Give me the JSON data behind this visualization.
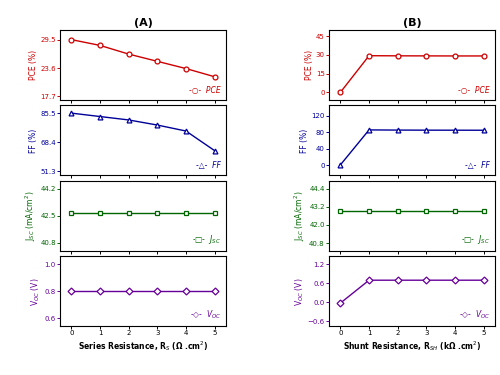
{
  "panel_A": {
    "xlabel": "Series Resistance, R$_S$ (Ω .cm$^2$)",
    "x": [
      0,
      1,
      2,
      3,
      4,
      5
    ],
    "PCE": [
      29.5,
      28.3,
      26.5,
      25.0,
      23.5,
      21.8
    ],
    "FF": [
      85.5,
      83.5,
      81.5,
      78.5,
      75.0,
      63.5
    ],
    "JSC": [
      42.7,
      42.7,
      42.7,
      42.7,
      42.7,
      42.7
    ],
    "VOC": [
      0.8,
      0.8,
      0.8,
      0.8,
      0.8,
      0.8
    ],
    "PCE_ylim": [
      17.0,
      31.5
    ],
    "PCE_yticks": [
      17.7,
      23.6,
      29.5
    ],
    "FF_ylim": [
      49.0,
      90.0
    ],
    "FF_yticks": [
      51.3,
      68.4,
      85.5
    ],
    "JSC_ylim": [
      40.3,
      44.7
    ],
    "JSC_yticks": [
      40.8,
      42.5,
      44.2
    ],
    "VOC_ylim": [
      0.54,
      1.06
    ],
    "VOC_yticks": [
      0.6,
      0.8,
      1.0
    ],
    "title": "(A)"
  },
  "panel_B": {
    "xlabel": "Shunt Resistance, R$_{SH}$ (kΩ .cm$^2$)",
    "x": [
      0,
      1,
      2,
      3,
      4,
      5
    ],
    "PCE": [
      0.05,
      29.4,
      29.3,
      29.25,
      29.2,
      29.2
    ],
    "FF": [
      0.5,
      85.5,
      85.1,
      84.9,
      84.8,
      84.7
    ],
    "JSC": [
      42.9,
      42.9,
      42.9,
      42.9,
      42.9,
      42.9
    ],
    "VOC": [
      -0.02,
      0.7,
      0.7,
      0.7,
      0.7,
      0.7
    ],
    "PCE_ylim": [
      -6,
      50
    ],
    "PCE_yticks": [
      0,
      15,
      30,
      45
    ],
    "FF_ylim": [
      -25,
      145
    ],
    "FF_yticks": [
      0,
      40,
      80,
      120
    ],
    "JSC_ylim": [
      40.3,
      44.9
    ],
    "JSC_yticks": [
      40.8,
      42.0,
      43.2,
      44.4
    ],
    "VOC_ylim": [
      -0.75,
      1.45
    ],
    "VOC_yticks": [
      -0.6,
      0.0,
      0.6,
      1.2
    ],
    "title": "(B)"
  },
  "color_PCE": "#cc0000",
  "color_FF": "#000099",
  "color_JSC": "#006600",
  "color_VOC": "#660099",
  "ylabel_PCE": "PCE (%)",
  "ylabel_FF": "FF (%)",
  "ylabel_JSC": "J$_{SC}$ (mA/cm$^2$)",
  "ylabel_VOC": "V$_{OC}$ (V)",
  "legend_labels": [
    "PCE",
    "FF",
    "J$_{SC}$",
    "V$_{OC}$"
  ],
  "markers": [
    "o",
    "^",
    "s",
    "D"
  ],
  "marker_chars": [
    "○",
    "△",
    "□",
    "◇"
  ]
}
